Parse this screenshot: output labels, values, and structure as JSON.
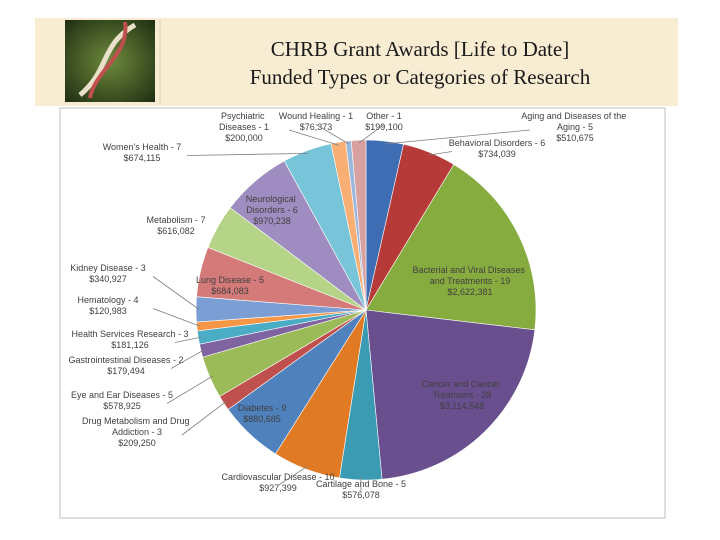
{
  "chart_data": {
    "type": "pie",
    "title": [
      "CHRB Grant Awards [Life to Date]",
      "Funded Types or Categories of Research"
    ],
    "categories": [
      "Aging and Diseases of the Aging - 5",
      "Behavioral Disorders - 6",
      "Bacterial and Viral Diseases and Treatments - 19",
      "Cancer and Cancer Treatment - 28",
      "Cartilage and Bone - 5",
      "Cardiovascular Disease - 10",
      "Diabetes - 9",
      "Drug Metabolism and Drug Addiction - 3",
      "Eye and Ear Diseases - 5",
      "Gastrointestinal Diseases - 2",
      "Health Services Research - 3",
      "Hematology - 4",
      "Kidney Disease - 3",
      "Lung Disease - 5",
      "Metabolism - 7",
      "Neurological Disorders - 6",
      "Women's Health - 7",
      "Psychiatric Diseases - 1",
      "Wound Healing - 1",
      "Other - 1"
    ],
    "values": [
      510675,
      734039,
      2622381,
      3114548,
      576078,
      927399,
      880685,
      209250,
      578925,
      179494,
      181126,
      120983,
      340927,
      684083,
      616082,
      970238,
      674115,
      200000,
      76373,
      199100
    ],
    "value_labels": [
      "$510,675",
      "$734,039",
      "$2,622,381",
      "$3,114,548",
      "$576,078",
      "$927,399",
      "$880,685",
      "$209,250",
      "$578,925",
      "$179,494",
      "$181,126",
      "$120,983",
      "$340,927",
      "$684,083",
      "$616,082",
      "$970,238",
      "$674,115",
      "$200,000",
      "$76,373",
      "$199,100"
    ],
    "colors": [
      "#3e6db3",
      "#b63a37",
      "#86ab3f",
      "#6a4f8f",
      "#3a9bb3",
      "#e07a24",
      "#4f81bd",
      "#c0504d",
      "#9bbb59",
      "#8064a2",
      "#4bacc6",
      "#f79646",
      "#7b9fd4",
      "#d47a78",
      "#b5d487",
      "#9f8cc0",
      "#78c4d8",
      "#f9ae73",
      "#9bb7db",
      "#d9a0a0"
    ]
  }
}
